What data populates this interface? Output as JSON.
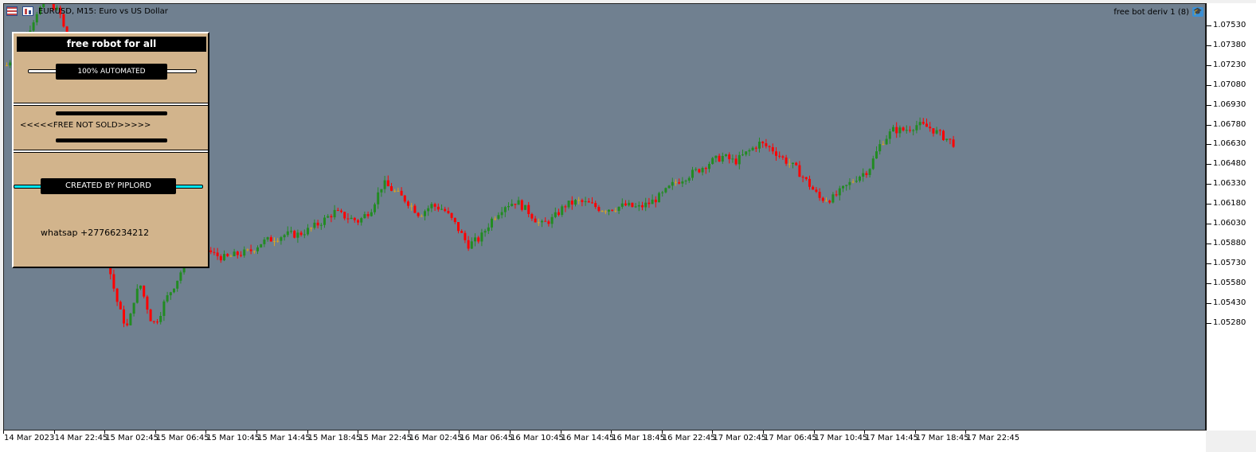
{
  "chart_data": {
    "type": "candlestick",
    "symbol": "EURUSD",
    "timeframe": "M15",
    "description": "Euro vs US Dollar",
    "colors": {
      "background": "#708090",
      "bull": "#228b22",
      "bear": "#ff0000",
      "doji": "#daa520"
    },
    "price_ticks": [
      "1.07530",
      "1.07380",
      "1.07230",
      "1.07080",
      "1.06930",
      "1.06780",
      "1.06630",
      "1.06480",
      "1.06330",
      "1.06180",
      "1.06030",
      "1.05880",
      "1.05730",
      "1.05580",
      "1.05430",
      "1.05280"
    ],
    "time_ticks": [
      "14 Mar 2023",
      "14 Mar 22:45",
      "15 Mar 02:45",
      "15 Mar 06:45",
      "15 Mar 10:45",
      "15 Mar 14:45",
      "15 Mar 18:45",
      "15 Mar 22:45",
      "16 Mar 02:45",
      "16 Mar 06:45",
      "16 Mar 10:45",
      "16 Mar 14:45",
      "16 Mar 18:45",
      "16 Mar 22:45",
      "17 Mar 02:45",
      "17 Mar 06:45",
      "17 Mar 10:45",
      "17 Mar 14:45",
      "17 Mar 18:45",
      "17 Mar 22:45"
    ],
    "path": [
      [
        0,
        1.0721
      ],
      [
        0.06,
        1.0741
      ],
      [
        0.1,
        1.0762
      ],
      [
        0.14,
        1.077
      ],
      [
        0.18,
        1.0758
      ],
      [
        0.2,
        1.0735
      ],
      [
        0.22,
        1.0712
      ],
      [
        0.24,
        1.0688
      ],
      [
        0.26,
        1.066
      ],
      [
        0.28,
        1.0638
      ],
      [
        0.3,
        1.0615
      ],
      [
        0.32,
        1.059
      ],
      [
        0.34,
        1.0565
      ],
      [
        0.36,
        1.0545
      ],
      [
        0.38,
        1.053
      ],
      [
        0.4,
        1.0522
      ],
      [
        0.42,
        1.0545
      ],
      [
        0.44,
        1.0555
      ],
      [
        0.46,
        1.054
      ],
      [
        0.48,
        1.0525
      ],
      [
        0.5,
        1.053
      ],
      [
        0.52,
        1.0542
      ],
      [
        0.54,
        1.055
      ],
      [
        0.56,
        1.0558
      ],
      [
        0.6,
        1.0578
      ],
      [
        0.64,
        1.0585
      ],
      [
        0.68,
        1.0578
      ],
      [
        0.72,
        1.0575
      ],
      [
        0.76,
        1.0578
      ],
      [
        0.8,
        1.058
      ],
      [
        0.84,
        1.0587
      ],
      [
        0.88,
        1.059
      ],
      [
        0.92,
        1.0593
      ],
      [
        0.96,
        1.0593
      ],
      [
        1.0,
        1.0597
      ],
      [
        1.04,
        1.0603
      ],
      [
        1.08,
        1.061
      ],
      [
        1.12,
        1.0606
      ],
      [
        1.16,
        1.0603
      ],
      [
        1.2,
        1.0612
      ],
      [
        1.24,
        1.0632
      ],
      [
        1.28,
        1.0625
      ],
      [
        1.32,
        1.0618
      ],
      [
        1.36,
        1.0608
      ],
      [
        1.4,
        1.0615
      ],
      [
        1.44,
        1.0612
      ],
      [
        1.48,
        1.06
      ],
      [
        1.52,
        1.0585
      ],
      [
        1.56,
        1.059
      ],
      [
        1.6,
        1.0605
      ],
      [
        1.64,
        1.0615
      ],
      [
        1.68,
        1.0618
      ],
      [
        1.72,
        1.061
      ],
      [
        1.76,
        1.06
      ],
      [
        1.8,
        1.0605
      ],
      [
        1.84,
        1.0615
      ],
      [
        1.88,
        1.0618
      ],
      [
        1.92,
        1.0616
      ],
      [
        1.96,
        1.0612
      ],
      [
        2.0,
        1.0613
      ],
      [
        2.04,
        1.0615
      ],
      [
        2.08,
        1.0613
      ],
      [
        2.12,
        1.0617
      ],
      [
        2.16,
        1.0623
      ],
      [
        2.2,
        1.0632
      ],
      [
        2.24,
        1.0637
      ],
      [
        2.28,
        1.0642
      ],
      [
        2.32,
        1.0648
      ],
      [
        2.36,
        1.0652
      ],
      [
        2.4,
        1.0648
      ],
      [
        2.44,
        1.0655
      ],
      [
        2.48,
        1.0662
      ],
      [
        2.52,
        1.0658
      ],
      [
        2.56,
        1.065
      ],
      [
        2.6,
        1.0643
      ],
      [
        2.64,
        1.0632
      ],
      [
        2.68,
        1.062
      ],
      [
        2.72,
        1.062
      ],
      [
        2.76,
        1.0628
      ],
      [
        2.8,
        1.0636
      ],
      [
        2.84,
        1.0642
      ],
      [
        2.88,
        1.0662
      ],
      [
        2.92,
        1.0672
      ],
      [
        2.96,
        1.0672
      ],
      [
        3.0,
        1.0676
      ],
      [
        3.04,
        1.0674
      ],
      [
        3.08,
        1.0668
      ],
      [
        3.12,
        1.0662
      ]
    ]
  },
  "window": {
    "title": "EURUSD, M15:  Euro vs US Dollar",
    "ea_label": "free bot deriv 1 (8)"
  },
  "panel": {
    "title": "free robot for all",
    "automated_label": "100% AUTOMATED",
    "free_label": "<<<<<FREE NOT SOLD>>>>>",
    "creator_label": "CREATED BY PIPLORD",
    "contact_label": "whatsap +27766234212"
  }
}
